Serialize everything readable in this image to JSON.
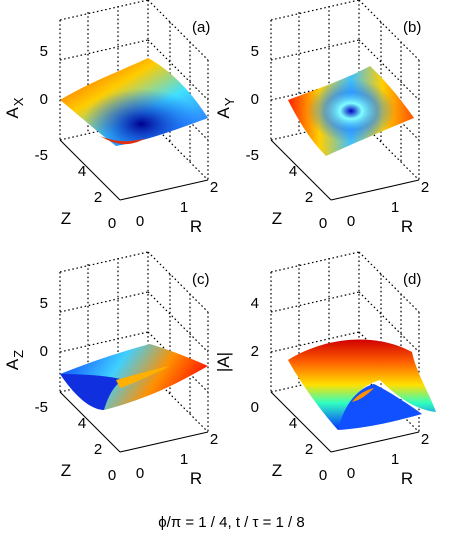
{
  "caption": "ϕ/π = 1 / 4, t / τ = 1 / 8",
  "chart_data": [
    {
      "type": "surface",
      "panel": "(a)",
      "zlabel_main": "A",
      "zlabel_sub": "X",
      "xlabel": "R",
      "ylabel": "Z",
      "zticks": [
        "5",
        "0",
        "-5"
      ],
      "zlim": [
        -5,
        5
      ],
      "xticks": [
        "0",
        "1",
        "2"
      ],
      "xlim": [
        0,
        2
      ],
      "yticks": [
        "0",
        "2",
        "4"
      ],
      "ylim": [
        0,
        4
      ],
      "grid": true,
      "colormap": "jet"
    },
    {
      "type": "surface",
      "panel": "(b)",
      "zlabel_main": "A",
      "zlabel_sub": "Y",
      "xlabel": "R",
      "ylabel": "Z",
      "zticks": [
        "5",
        "0",
        "-5"
      ],
      "zlim": [
        -5,
        5
      ],
      "xticks": [
        "0",
        "1",
        "2"
      ],
      "xlim": [
        0,
        2
      ],
      "yticks": [
        "0",
        "2",
        "4"
      ],
      "ylim": [
        0,
        4
      ],
      "grid": true,
      "colormap": "jet"
    },
    {
      "type": "surface",
      "panel": "(c)",
      "zlabel_main": "A",
      "zlabel_sub": "Z",
      "xlabel": "R",
      "ylabel": "Z",
      "zticks": [
        "5",
        "0",
        "-5"
      ],
      "zlim": [
        -5,
        5
      ],
      "xticks": [
        "0",
        "1",
        "2"
      ],
      "xlim": [
        0,
        2
      ],
      "yticks": [
        "0",
        "2",
        "4"
      ],
      "ylim": [
        0,
        4
      ],
      "grid": true,
      "colormap": "jet"
    },
    {
      "type": "surface",
      "panel": "(d)",
      "zlabel_main": "|A|",
      "zlabel_sub": "",
      "xlabel": "R",
      "ylabel": "Z",
      "zticks": [
        "4",
        "2",
        "0"
      ],
      "zlim": [
        0,
        4
      ],
      "xticks": [
        "0",
        "1",
        "2"
      ],
      "xlim": [
        0,
        2
      ],
      "yticks": [
        "0",
        "2",
        "4"
      ],
      "ylim": [
        0,
        4
      ],
      "grid": true,
      "colormap": "jet"
    }
  ]
}
